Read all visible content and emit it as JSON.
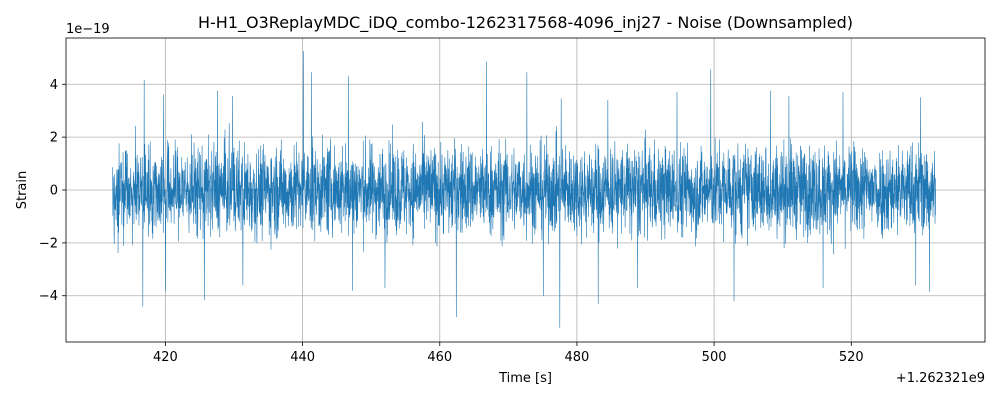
{
  "chart_data": {
    "type": "line",
    "title": "H-H1_O3ReplayMDC_iDQ_combo-1262317568-4096_inj27 - Noise (Downsampled)",
    "xlabel": "Time [s]",
    "ylabel": "Strain",
    "x_offset_label": "+1.262321e9",
    "y_scale_label": "1e−19",
    "xlim": [
      405.5,
      539.5
    ],
    "ylim": [
      -5.75,
      5.75
    ],
    "x_ticks": [
      420,
      440,
      460,
      480,
      500,
      520
    ],
    "x_tick_labels": [
      "420",
      "440",
      "460",
      "480",
      "500",
      "520"
    ],
    "y_ticks": [
      -4,
      -2,
      0,
      2,
      4
    ],
    "y_tick_labels": [
      "−4",
      "−2",
      "0",
      "2",
      "4"
    ],
    "grid": true,
    "line_color": "#1f77b4",
    "series": [
      {
        "x_range": [
          412.3,
          532.3
        ],
        "sample_count": 4096,
        "typical_envelope": [
          -2.0,
          2.0
        ],
        "min": -5.2,
        "max": 5.25,
        "peaks": [
          [
            416.9,
            4.15
          ],
          [
            419.7,
            3.6
          ],
          [
            427.6,
            3.75
          ],
          [
            429.8,
            3.55
          ],
          [
            440.1,
            5.25
          ],
          [
            441.3,
            4.45
          ],
          [
            446.7,
            4.3
          ],
          [
            466.8,
            4.85
          ],
          [
            472.7,
            4.45
          ],
          [
            477.7,
            3.45
          ],
          [
            484.5,
            3.4
          ],
          [
            494.6,
            3.7
          ],
          [
            499.5,
            4.55
          ],
          [
            508.2,
            3.75
          ],
          [
            510.9,
            3.55
          ],
          [
            518.8,
            3.7
          ],
          [
            530.1,
            3.5
          ]
        ],
        "troughs": [
          [
            416.7,
            -4.4
          ],
          [
            420.0,
            -3.8
          ],
          [
            425.7,
            -4.15
          ],
          [
            431.3,
            -3.6
          ],
          [
            447.3,
            -3.8
          ],
          [
            452.0,
            -3.7
          ],
          [
            462.4,
            -4.8
          ],
          [
            475.1,
            -4.0
          ],
          [
            477.5,
            -5.2
          ],
          [
            483.1,
            -4.3
          ],
          [
            488.8,
            -3.7
          ],
          [
            502.9,
            -4.2
          ],
          [
            515.9,
            -3.7
          ],
          [
            529.4,
            -3.6
          ],
          [
            531.4,
            -3.85
          ]
        ]
      }
    ]
  }
}
